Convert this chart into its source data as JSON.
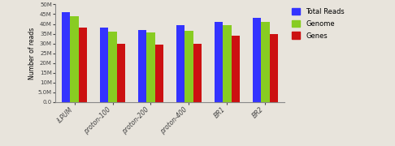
{
  "categories": [
    "iLPUM",
    "proton-100",
    "proton-200",
    "proton-400",
    "BR1",
    "BR2"
  ],
  "total_reads": [
    46000000,
    38000000,
    37000000,
    39500000,
    41000000,
    43000000
  ],
  "genome": [
    44000000,
    36000000,
    35500000,
    36500000,
    39500000,
    41000000
  ],
  "genes": [
    38000000,
    30000000,
    29500000,
    30000000,
    34000000,
    35000000
  ],
  "bar_colors": [
    "#3333ff",
    "#88cc22",
    "#cc1111"
  ],
  "ylabel": "Number of reads",
  "ylim": [
    0,
    50000000
  ],
  "yticks": [
    0,
    5000000,
    10000000,
    15000000,
    20000000,
    25000000,
    30000000,
    35000000,
    40000000,
    45000000,
    50000000
  ],
  "ytick_labels": [
    "0.0",
    "5.0M",
    "10M",
    "15M",
    "20M",
    "25M",
    "30M",
    "35M",
    "40M",
    "45M",
    "50M"
  ],
  "legend_labels": [
    "Total Reads",
    "Genome",
    "Genes"
  ],
  "background_color": "#e8e4dc",
  "bar_width": 0.22
}
